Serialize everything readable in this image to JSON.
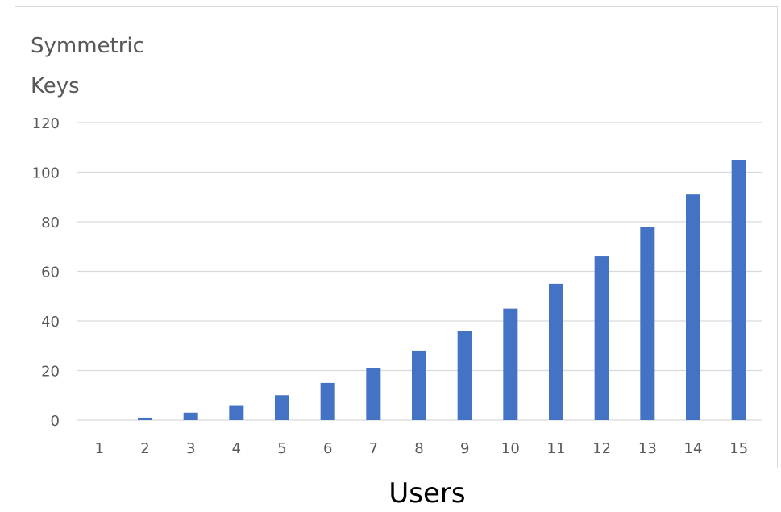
{
  "chart_data": {
    "type": "bar",
    "title": "",
    "ylabel_lines": [
      "Symmetric",
      "Keys"
    ],
    "xlabel": "Users",
    "categories": [
      "1",
      "2",
      "3",
      "4",
      "5",
      "6",
      "7",
      "8",
      "9",
      "10",
      "11",
      "12",
      "13",
      "14",
      "15"
    ],
    "values": [
      0,
      1,
      3,
      6,
      10,
      15,
      21,
      28,
      36,
      45,
      55,
      66,
      78,
      91,
      105
    ],
    "ylim": [
      0,
      120
    ],
    "yticks": [
      0,
      20,
      40,
      60,
      80,
      100,
      120
    ],
    "grid": true,
    "legend": "none",
    "bar_color": "#4472c4",
    "grid_color": "#d9d9d9",
    "tick_color": "#595959"
  }
}
